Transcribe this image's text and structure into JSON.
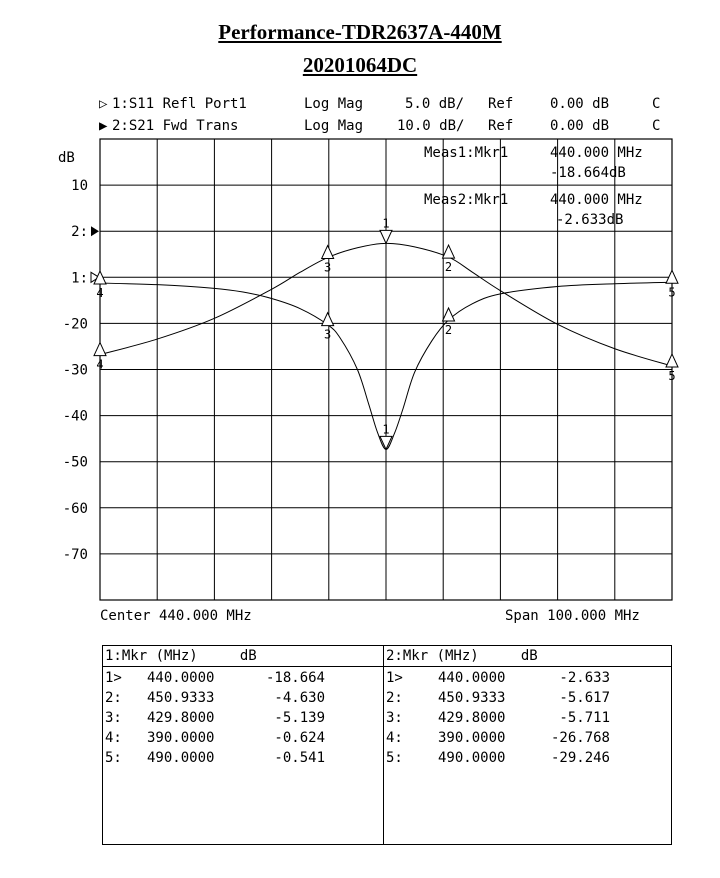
{
  "title": "Performance-TDR2637A-440M",
  "subtitle": "20201064DC",
  "channels": [
    {
      "marker": "▷",
      "label": "1:S11 Refl Port1",
      "format": "Log Mag",
      "scale": "5.0 dB/",
      "ref": "Ref",
      "ref_val": "0.00 dB",
      "flag": "C"
    },
    {
      "marker": "▶",
      "label": "2:S21 Fwd Trans",
      "format": "Log Mag",
      "scale": "10.0 dB/",
      "ref": "Ref",
      "ref_val": "0.00 dB",
      "flag": "C"
    }
  ],
  "meas": [
    {
      "label": "Meas1:Mkr1",
      "freq": "440.000 MHz",
      "value": "-18.664dB"
    },
    {
      "label": "Meas2:Mkr1",
      "freq": "440.000 MHz",
      "value": "-2.633dB"
    }
  ],
  "center_label": "Center 440.000 MHz",
  "span_label": "Span 100.000 MHz",
  "chart_data": {
    "type": "line",
    "ylabel": "dB",
    "xlim": [
      390,
      490
    ],
    "ylim": [
      -80,
      20
    ],
    "y_tick_labels": [
      "10",
      "2:",
      "1:",
      "-20",
      "-30",
      "-40",
      "-50",
      "-60",
      "-70"
    ],
    "grid": true,
    "series": [
      {
        "name": "1:S11 Refl Port1",
        "x": [
          390,
          400,
          410,
          415,
          420,
          425,
          429.8,
          432,
          435,
          437,
          438.5,
          440,
          441.5,
          443,
          445,
          448,
          450.93,
          455,
          460,
          470,
          480,
          490
        ],
        "y": [
          -0.624,
          -0.8,
          -1.2,
          -1.6,
          -2.3,
          -3.4,
          -5.139,
          -6.6,
          -10.0,
          -13.8,
          -16.8,
          -18.664,
          -16.9,
          -14.2,
          -10.3,
          -6.9,
          -4.63,
          -2.9,
          -1.8,
          -1.0,
          -0.7,
          -0.541
        ]
      },
      {
        "name": "2:S21 Fwd Trans",
        "x": [
          390,
          400,
          410,
          420,
          425,
          429.8,
          435,
          440,
          445,
          450.93,
          455,
          460,
          470,
          480,
          490
        ],
        "y": [
          -26.768,
          -23.4,
          -18.9,
          -12.6,
          -8.9,
          -5.711,
          -3.6,
          -2.633,
          -3.4,
          -5.617,
          -8.8,
          -12.9,
          -20.2,
          -25.5,
          -29.246
        ]
      }
    ],
    "markers": [
      {
        "n": "1",
        "x": 440.0,
        "s11": -18.664,
        "s21": -2.633
      },
      {
        "n": "2",
        "x": 450.9333,
        "s11": -4.63,
        "s21": -5.617
      },
      {
        "n": "3",
        "x": 429.8,
        "s11": -5.139,
        "s21": -5.711
      },
      {
        "n": "4",
        "x": 390.0,
        "s11": -0.624,
        "s21": -26.768
      },
      {
        "n": "5",
        "x": 490.0,
        "s11": -0.541,
        "s21": -29.246
      }
    ]
  },
  "table": {
    "left_header": "1:Mkr (MHz)     dB",
    "right_header": "2:Mkr (MHz)     dB",
    "left_rows": [
      {
        "idx": "1>",
        "freq": "440.0000",
        "db": "-18.664"
      },
      {
        "idx": "2:",
        "freq": "450.9333",
        "db": "-4.630"
      },
      {
        "idx": "3:",
        "freq": "429.8000",
        "db": "-5.139"
      },
      {
        "idx": "4:",
        "freq": "390.0000",
        "db": "-0.624"
      },
      {
        "idx": "5:",
        "freq": "490.0000",
        "db": "-0.541"
      }
    ],
    "right_rows": [
      {
        "idx": "1>",
        "freq": "440.0000",
        "db": "-2.633"
      },
      {
        "idx": "2:",
        "freq": "450.9333",
        "db": "-5.617"
      },
      {
        "idx": "3:",
        "freq": "429.8000",
        "db": "-5.711"
      },
      {
        "idx": "4:",
        "freq": "390.0000",
        "db": "-26.768"
      },
      {
        "idx": "5:",
        "freq": "490.0000",
        "db": "-29.246"
      }
    ]
  }
}
